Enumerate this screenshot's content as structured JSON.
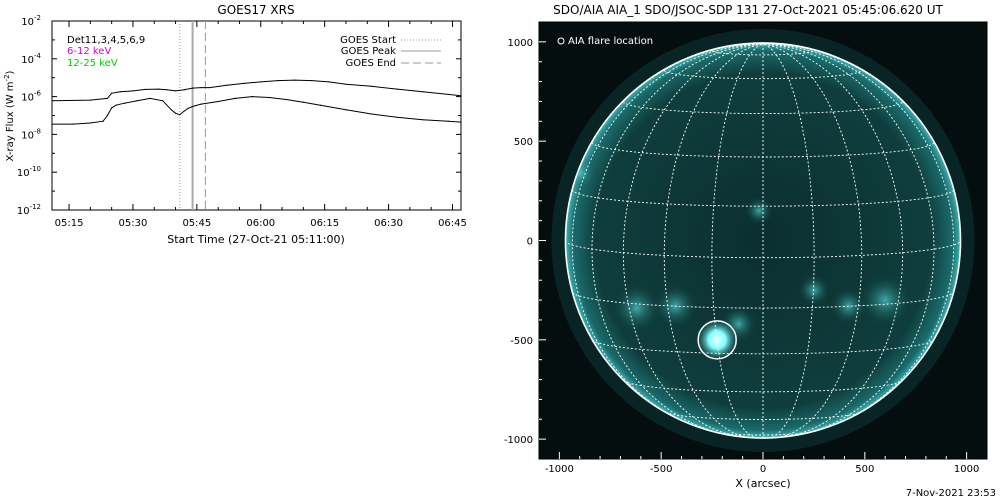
{
  "chart_data": [
    {
      "type": "line",
      "title": "GOES17 XRS",
      "xlabel": "Start Time (27-Oct-21 05:11:00)",
      "ylabel": "X-ray Flux (W m",
      "ylabel_sup": "-2",
      "ylabel_close": ")",
      "y_scale": "log",
      "x_time_range": [
        "05:11",
        "06:47"
      ],
      "ylim": [
        1e-12,
        0.01
      ],
      "x_ticks": [
        "05:15",
        "05:30",
        "05:45",
        "06:00",
        "06:15",
        "06:30",
        "06:45"
      ],
      "y_ticks": [
        {
          "value": 0.01,
          "base": "10",
          "exp": "-2"
        },
        {
          "value": 0.0001,
          "base": "10",
          "exp": "-4"
        },
        {
          "value": 1e-06,
          "base": "10",
          "exp": "-6"
        },
        {
          "value": 1e-08,
          "base": "10",
          "exp": "-8"
        },
        {
          "value": 1e-10,
          "base": "10",
          "exp": "-10"
        },
        {
          "value": 1e-12,
          "base": "10",
          "exp": "-12"
        }
      ],
      "legend_items": [
        {
          "label": "Det11,3,4,5,6,9",
          "color": "#000000"
        },
        {
          "label": "6-12 keV",
          "color": "#d400d4"
        },
        {
          "label": "12-25 keV",
          "color": "#00cc00"
        }
      ],
      "event_legend": [
        {
          "label": "GOES Start",
          "style": "dotted",
          "color": "#999999"
        },
        {
          "label": "GOES Peak",
          "style": "solid",
          "color": "#999999"
        },
        {
          "label": "GOES End",
          "style": "dashed",
          "color": "#999999"
        }
      ],
      "events": {
        "start": "05:41",
        "peak": "05:44",
        "end": "05:47"
      },
      "series": [
        {
          "channel": "upper",
          "x": [
            "05:11",
            "05:20",
            "05:24",
            "05:25",
            "05:27",
            "05:30",
            "05:33",
            "05:36",
            "05:38",
            "05:40",
            "05:42",
            "05:44",
            "05:46",
            "05:48",
            "05:52",
            "05:56",
            "06:00",
            "06:04",
            "06:08",
            "06:12",
            "06:16",
            "06:20",
            "06:26",
            "06:32",
            "06:38",
            "06:44",
            "06:47"
          ],
          "values": [
            6e-07,
            6.5e-07,
            8e-07,
            1.5e-06,
            1.8e-06,
            2e-06,
            2.4e-06,
            2.5e-06,
            2.3e-06,
            2e-06,
            2.3e-06,
            2.8e-06,
            3e-06,
            3e-06,
            4e-06,
            5e-06,
            6e-06,
            7e-06,
            7.5e-06,
            7e-06,
            6e-06,
            4.5e-06,
            3.5e-06,
            2.5e-06,
            1.8e-06,
            1.3e-06,
            1.1e-06
          ]
        },
        {
          "channel": "lower",
          "x": [
            "05:11",
            "05:16",
            "05:20",
            "05:23",
            "05:24",
            "05:25",
            "05:26",
            "05:28",
            "05:31",
            "05:34",
            "05:37",
            "05:39",
            "05:40",
            "05:41",
            "05:42",
            "05:43",
            "05:44",
            "05:46",
            "05:50",
            "05:54",
            "05:58",
            "06:02",
            "06:06",
            "06:10",
            "06:14",
            "06:20",
            "06:26",
            "06:32",
            "06:38",
            "06:44",
            "06:47"
          ],
          "values": [
            3.5e-08,
            3.5e-08,
            4e-08,
            5e-08,
            1e-07,
            2.5e-07,
            3.5e-07,
            4.5e-07,
            6e-07,
            8e-07,
            6e-07,
            2e-07,
            1.3e-07,
            1.1e-07,
            1.7e-07,
            2.4e-07,
            3e-07,
            4e-07,
            5.5e-07,
            8e-07,
            1e-06,
            9e-07,
            7e-07,
            5e-07,
            3.5e-07,
            2e-07,
            1.2e-07,
            8e-08,
            6e-08,
            5e-08,
            4.5e-08
          ]
        }
      ]
    },
    {
      "type": "image",
      "title": "SDO/AIA AIA_1 SDO/JSOC-SDP 131 27-Oct-2021 05:45:06.620 UT",
      "xlabel": "X (arcsec)",
      "xlim": [
        -1100,
        1100
      ],
      "ylim": [
        -1100,
        1100
      ],
      "x_ticks": [
        -1000,
        -500,
        0,
        500,
        1000
      ],
      "y_ticks": [
        1000,
        500,
        0,
        -500,
        -1000
      ],
      "legend_label": "AIA flare location",
      "flare_location": {
        "x": -225,
        "y": -500
      },
      "solar_radius_arcsec": 970,
      "colors": {
        "background": "#050e0e",
        "disk": "#0e3a3a",
        "bright": "#7fffff",
        "grid": "#ffffff"
      }
    }
  ],
  "footer": {
    "timestamp": "7-Nov-2021 23:53"
  }
}
